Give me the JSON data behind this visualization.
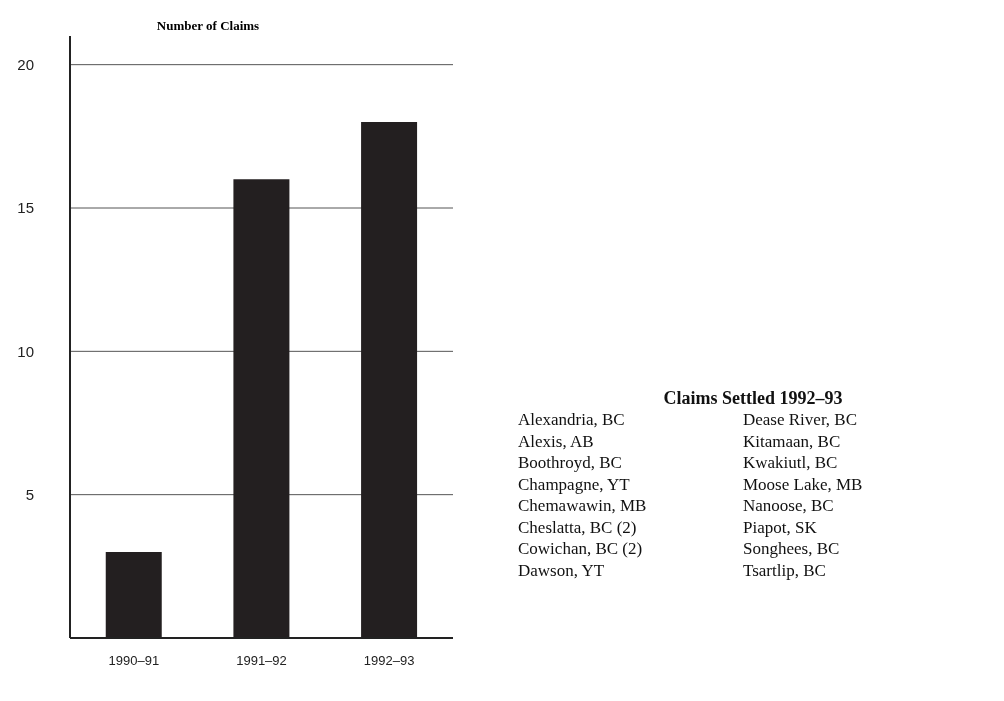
{
  "chart_data": [
    {
      "type": "bar",
      "title": "Number of Claims",
      "categories": [
        "1990–91",
        "1991–92",
        "1992–93"
      ],
      "values": [
        3,
        16,
        18
      ],
      "color": "#231f20",
      "ylim": [
        0,
        21
      ],
      "yticks": [
        5,
        10,
        15,
        20
      ],
      "grid": "y"
    },
    {
      "type": "other",
      "title": "Claims Settled 1992–93",
      "annotations": [
        "Alexandria, BC",
        "Alexis, AB",
        "Boothroyd, BC",
        "Champagne, YT",
        "Chemawawin, MB",
        "Cheslatta, BC (2)",
        "Cowichan, BC (2)",
        "Dawson, YT",
        "Dease River, BC",
        "Kitamaan, BC",
        "Kwakiutl, BC",
        "Moose Lake, MB",
        "Nanoose, BC",
        "Piapot, SK",
        "Songhees, BC",
        "Tsartlip, BC"
      ]
    }
  ]
}
